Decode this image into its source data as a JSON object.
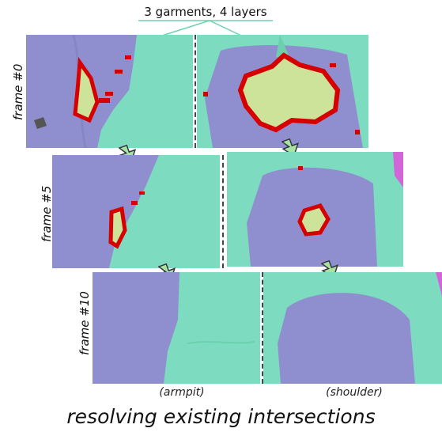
{
  "title": "3 garments, 4 layers",
  "frames": [
    {
      "label": "frame #0"
    },
    {
      "label": "frame #5"
    },
    {
      "label": "frame #10"
    }
  ],
  "regions": [
    "(armpit)",
    "(shoulder)"
  ],
  "caption": "resolving existing intersections",
  "colors": {
    "lavender": "#8f8fcf",
    "teal": "#7ddcc0",
    "intersection_red": "#d60000",
    "intersection_fill": "#cde39a",
    "magenta": "#d266d8",
    "arrow_fill": "#a8e3a0"
  }
}
